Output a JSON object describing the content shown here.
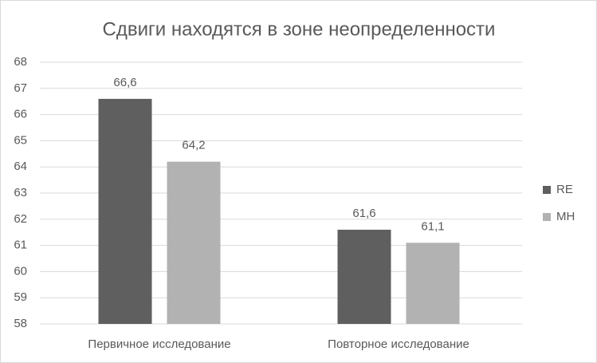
{
  "chart_data": {
    "type": "bar",
    "title": "Сдвиги находятся в зоне неопределенности",
    "categories": [
      "Первичное исследование",
      "Повторное исследование"
    ],
    "series": [
      {
        "name": "RE",
        "color": "#5f5f5f",
        "values": [
          66.6,
          61.6
        ],
        "value_labels": [
          "66,6",
          "61,6"
        ]
      },
      {
        "name": "MH",
        "color": "#b2b2b2",
        "values": [
          64.2,
          61.1
        ],
        "value_labels": [
          "64,2",
          "61,1"
        ]
      }
    ],
    "ylim": [
      58,
      68
    ],
    "yticks": [
      58,
      59,
      60,
      61,
      62,
      63,
      64,
      65,
      66,
      67,
      68
    ],
    "grid": true,
    "legend": "right"
  }
}
